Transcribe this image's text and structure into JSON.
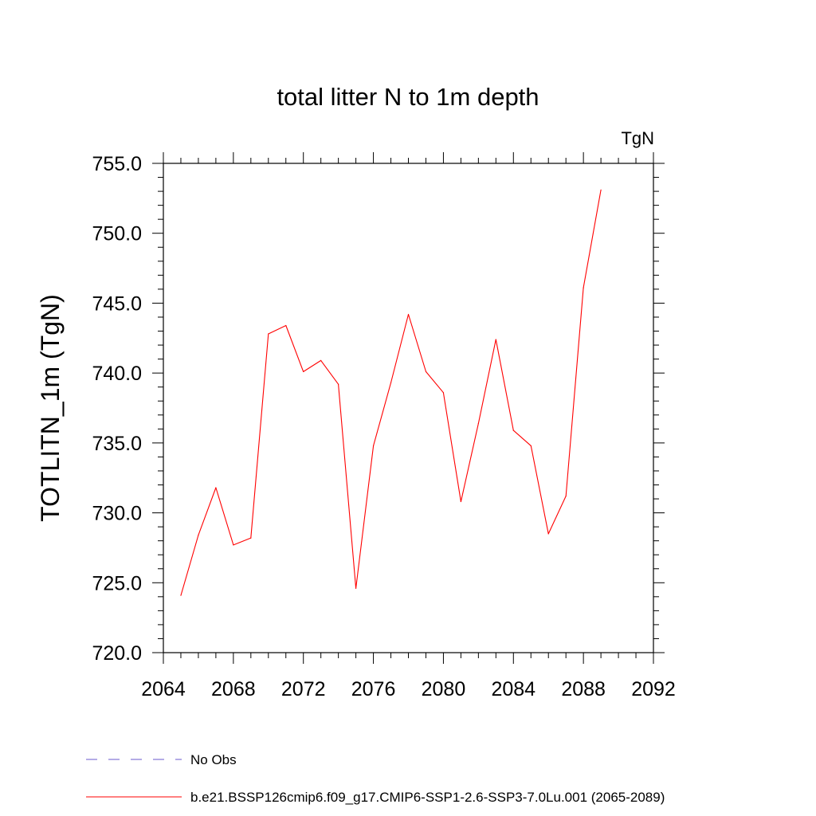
{
  "chart_data": {
    "type": "line",
    "title": "total litter N to 1m depth",
    "units_label": "TgN",
    "ylabel": "TOTLITN_1m  (TgN)",
    "xlabel": "",
    "xlim": [
      2064,
      2092
    ],
    "ylim": [
      720,
      755
    ],
    "x_ticks": [
      2064,
      2068,
      2072,
      2076,
      2080,
      2084,
      2088,
      2092
    ],
    "x_tick_labels": [
      "2064",
      "2068",
      "2072",
      "2076",
      "2080",
      "2084",
      "2088",
      "2092"
    ],
    "y_ticks": [
      720,
      725,
      730,
      735,
      740,
      745,
      750,
      755
    ],
    "y_tick_labels": [
      "720.0",
      "725.0",
      "730.0",
      "735.0",
      "740.0",
      "745.0",
      "750.0",
      "755.0"
    ],
    "legend_position": "bottom",
    "series": [
      {
        "name": "b.e21.BSSP126cmip6.f09_g17.CMIP6-SSP1-2.6-SSP3-7.0Lu.001 (2065-2089)",
        "color": "#ff0000",
        "style": "solid",
        "x": [
          2065,
          2066,
          2067,
          2068,
          2069,
          2070,
          2071,
          2072,
          2073,
          2074,
          2075,
          2076,
          2077,
          2078,
          2079,
          2080,
          2081,
          2082,
          2083,
          2084,
          2085,
          2086,
          2087,
          2088,
          2089
        ],
        "y": [
          724.1,
          728.4,
          731.8,
          727.7,
          728.2,
          742.8,
          743.4,
          740.1,
          740.9,
          739.2,
          724.6,
          734.8,
          739.3,
          744.2,
          740.1,
          738.6,
          730.8,
          736.4,
          742.4,
          735.9,
          734.8,
          728.5,
          731.2,
          746.1,
          753.1
        ]
      }
    ],
    "legend_entries": [
      {
        "label": "No Obs",
        "color": "#6a5acd",
        "style": "dashed"
      },
      {
        "label": "b.e21.BSSP126cmip6.f09_g17.CMIP6-SSP1-2.6-SSP3-7.0Lu.001 (2065-2089)",
        "color": "#ff0000",
        "style": "solid"
      }
    ]
  }
}
